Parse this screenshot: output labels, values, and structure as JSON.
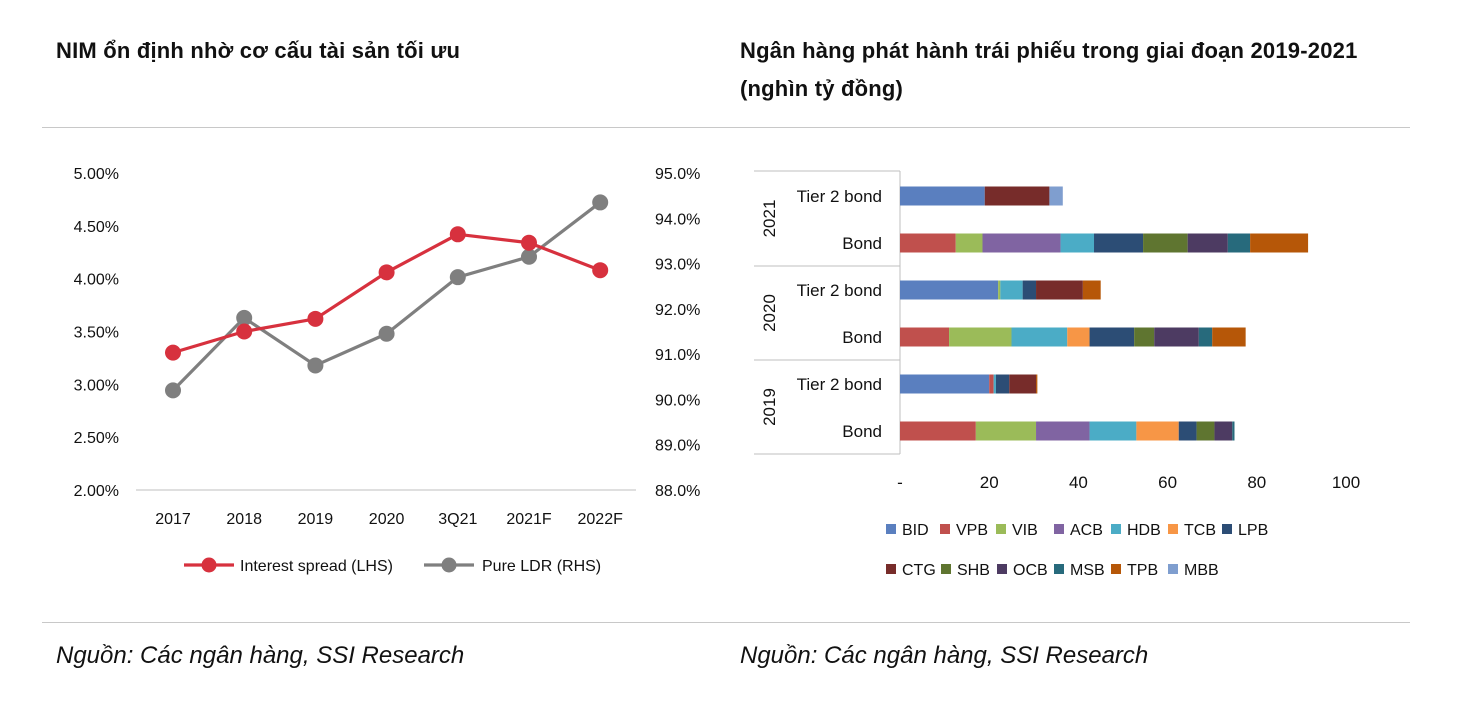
{
  "left": {
    "title": "NIM ổn định nhờ cơ cấu tài sản tối ưu",
    "source": "Nguồn: Các ngân hàng, SSI Research"
  },
  "right": {
    "title": "Ngân hàng phát hành trái phiếu trong giai đoạn 2019-2021 (nghìn tỷ đồng)",
    "source": "Nguồn: Các ngân hàng, SSI Research"
  },
  "colors": {
    "interest_spread": "#d7313e",
    "pure_ldr": "#7f7f7f",
    "banks": {
      "BID": "#5a7fbf",
      "VPB": "#c0504d",
      "VIB": "#9bbb59",
      "ACB": "#8064a2",
      "HDB": "#4bacc6",
      "TCB": "#f79646",
      "LPB": "#2c4d75",
      "CTG": "#772c2a",
      "SHB": "#5f7530",
      "OCB": "#4d3b62",
      "MSB": "#276a7c",
      "TPB": "#b65708",
      "MBB": "#7f9ecf"
    }
  },
  "chart_data": [
    {
      "type": "line",
      "title": "NIM ổn định nhờ cơ cấu tài sản tối ưu",
      "categories": [
        "2017",
        "2018",
        "2019",
        "2020",
        "3Q21",
        "2021F",
        "2022F"
      ],
      "series": [
        {
          "name": "Interest spread (LHS)",
          "axis": "left",
          "values": [
            3.3,
            3.5,
            3.62,
            4.06,
            4.42,
            4.34,
            4.08
          ]
        },
        {
          "name": "Pure LDR (RHS)",
          "axis": "right",
          "values": [
            90.2,
            91.8,
            90.75,
            91.45,
            92.7,
            93.15,
            94.35
          ]
        }
      ],
      "left_axis": {
        "min": 2.0,
        "max": 5.0,
        "step": 0.5,
        "ticks": [
          "2.00%",
          "2.50%",
          "3.00%",
          "3.50%",
          "4.00%",
          "4.50%",
          "5.00%"
        ]
      },
      "right_axis": {
        "min": 88.0,
        "max": 95.0,
        "step": 1.0,
        "ticks": [
          "88.0%",
          "89.0%",
          "90.0%",
          "91.0%",
          "92.0%",
          "93.0%",
          "94.0%",
          "95.0%"
        ]
      },
      "legend": [
        "Interest spread (LHS)",
        "Pure LDR (RHS)"
      ],
      "legend_position": "bottom",
      "grid": false
    },
    {
      "type": "bar",
      "orientation": "horizontal",
      "stacked": true,
      "title": "Ngân hàng phát hành trái phiếu trong giai đoạn 2019-2021 (nghìn tỷ đồng)",
      "stack_order": [
        "BID",
        "VPB",
        "VIB",
        "ACB",
        "HDB",
        "TCB",
        "LPB",
        "CTG",
        "SHB",
        "OCB",
        "MSB",
        "TPB",
        "MBB"
      ],
      "groups": [
        {
          "year": "2021",
          "rows": [
            {
              "label": "Tier 2 bond",
              "values": {
                "BID": 19,
                "CTG": 14.5,
                "MBB": 3
              }
            },
            {
              "label": "Bond",
              "values": {
                "VPB": 12.5,
                "VIB": 6,
                "ACB": 17.5,
                "HDB": 7.5,
                "LPB": 11,
                "SHB": 10,
                "OCB": 9,
                "MSB": 5,
                "TPB": 13
              }
            }
          ]
        },
        {
          "year": "2020",
          "rows": [
            {
              "label": "Tier 2 bond",
              "values": {
                "BID": 22,
                "VIB": 0.5,
                "HDB": 5,
                "LPB": 3,
                "CTG": 10.5,
                "TPB": 4
              }
            },
            {
              "label": "Bond",
              "values": {
                "VPB": 11,
                "VIB": 14,
                "HDB": 12.5,
                "TCB": 5,
                "LPB": 10,
                "SHB": 4.5,
                "OCB": 10,
                "MSB": 3,
                "TPB": 7.5
              }
            }
          ]
        },
        {
          "year": "2019",
          "rows": [
            {
              "label": "Tier 2 bond",
              "values": {
                "BID": 20,
                "VPB": 1,
                "HDB": 0.5,
                "LPB": 3,
                "CTG": 6,
                "TPB": 0.3
              }
            },
            {
              "label": "Bond",
              "values": {
                "VPB": 17,
                "VIB": 13.5,
                "ACB": 12,
                "HDB": 10.5,
                "TCB": 9.5,
                "LPB": 4,
                "SHB": 4,
                "OCB": 4,
                "MSB": 0.5
              }
            }
          ]
        }
      ],
      "x_axis": {
        "min": 0,
        "max": 100,
        "ticks": [
          "-",
          "20",
          "40",
          "60",
          "80",
          "100"
        ]
      },
      "legend": [
        "BID",
        "VPB",
        "VIB",
        "ACB",
        "HDB",
        "TCB",
        "LPB",
        "CTG",
        "SHB",
        "OCB",
        "MSB",
        "TPB",
        "MBB"
      ],
      "legend_position": "bottom",
      "grid": false
    }
  ]
}
